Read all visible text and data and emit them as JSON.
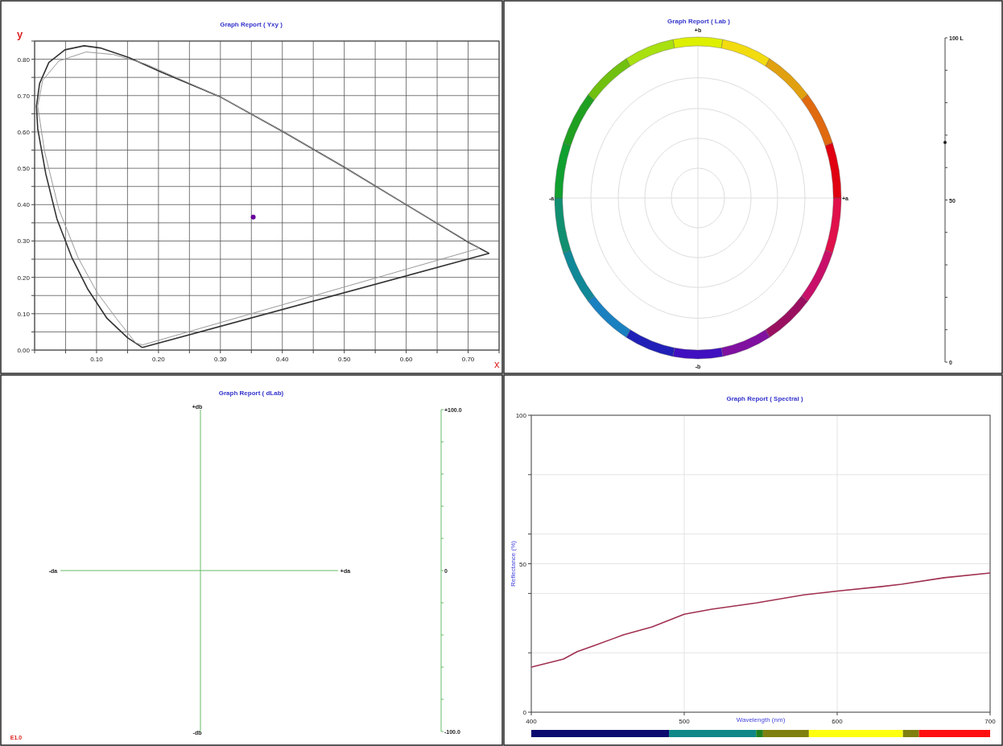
{
  "chart_data": [
    {
      "type": "line",
      "title": "Graph Report ( Yxy )",
      "xlabel": "x",
      "ylabel": "y",
      "xlim": [
        0,
        0.75
      ],
      "ylim": [
        0,
        0.85
      ],
      "grid": true,
      "xticks": [
        {
          "value": 0,
          "label": null
        },
        {
          "value": 0.05,
          "label": null
        },
        {
          "value": 0.1,
          "label": "0.10"
        },
        {
          "value": 0.15,
          "label": null
        },
        {
          "value": 0.2,
          "label": "0.20"
        },
        {
          "value": 0.25,
          "label": null
        },
        {
          "value": 0.3,
          "label": "0.30"
        },
        {
          "value": 0.35,
          "label": null
        },
        {
          "value": 0.4,
          "label": "0.40"
        },
        {
          "value": 0.45,
          "label": null
        },
        {
          "value": 0.5,
          "label": "0.50"
        },
        {
          "value": 0.55,
          "label": null
        },
        {
          "value": 0.6,
          "label": "0.60"
        },
        {
          "value": 0.65,
          "label": null
        },
        {
          "value": 0.7,
          "label": "0.70"
        },
        {
          "value": 0.75,
          "label": null
        }
      ],
      "yticks": [
        {
          "value": 0,
          "label": "0.00"
        },
        {
          "value": 0.05,
          "label": null
        },
        {
          "value": 0.1,
          "label": "0.10"
        },
        {
          "value": 0.15,
          "label": null
        },
        {
          "value": 0.2,
          "label": "0.20"
        },
        {
          "value": 0.25,
          "label": null
        },
        {
          "value": 0.3,
          "label": "0.30"
        },
        {
          "value": 0.35,
          "label": null
        },
        {
          "value": 0.4,
          "label": "0.40"
        },
        {
          "value": 0.45,
          "label": null
        },
        {
          "value": 0.5,
          "label": "0.50"
        },
        {
          "value": 0.55,
          "label": null
        },
        {
          "value": 0.6,
          "label": "0.60"
        },
        {
          "value": 0.65,
          "label": null
        },
        {
          "value": 0.7,
          "label": "0.70"
        },
        {
          "value": 0.75,
          "label": null
        },
        {
          "value": 0.8,
          "label": "0.80"
        },
        {
          "value": 0.85,
          "label": null
        }
      ],
      "series": [
        {
          "type": "line",
          "color": "#333333",
          "marker": "none",
          "x": [
            0.174,
            0.15,
            0.117,
            0.086,
            0.06,
            0.036,
            0.018,
            0.005,
            0.003,
            0.008,
            0.023,
            0.049,
            0.08,
            0.106,
            0.153,
            0.205,
            0.298,
            0.402,
            0.5,
            0.599,
            0.698,
            0.734
          ],
          "values": [
            0.007,
            0.034,
            0.087,
            0.167,
            0.255,
            0.361,
            0.485,
            0.609,
            0.671,
            0.733,
            0.791,
            0.826,
            0.837,
            0.831,
            0.804,
            0.764,
            0.698,
            0.6,
            0.503,
            0.401,
            0.299,
            0.266
          ]
        },
        {
          "type": "line",
          "color": "#333333",
          "marker": "none",
          "x": [
            0.174,
            0.734
          ],
          "values": [
            0.007,
            0.266
          ]
        },
        {
          "type": "line",
          "color": "#999999",
          "marker": "none",
          "x": [
            0.174,
            0.163,
            0.132,
            0.101,
            0.07,
            0.039,
            0.016,
            0.005,
            0.013,
            0.039,
            0.083,
            0.127,
            0.179,
            0.298,
            0.402,
            0.5,
            0.599,
            0.718
          ],
          "values": [
            0.014,
            0.02,
            0.087,
            0.158,
            0.255,
            0.388,
            0.547,
            0.671,
            0.742,
            0.795,
            0.82,
            0.813,
            0.787,
            0.698,
            0.6,
            0.503,
            0.401,
            0.28
          ]
        },
        {
          "type": "line",
          "color": "#999999",
          "marker": "none",
          "x": [
            0.174,
            0.718
          ],
          "values": [
            0.014,
            0.28
          ]
        },
        {
          "type": "scatter",
          "color": "#660099",
          "marker": "circle",
          "x": [
            0.353
          ],
          "values": [
            0.366
          ]
        }
      ]
    },
    {
      "type": "other",
      "title": "Graph Report ( Lab )",
      "annotations": [
        "+b",
        "-a",
        "+a",
        "-b",
        "100 L",
        "50",
        "0"
      ]
    },
    {
      "type": "other",
      "title": "Graph Report ( dLab)",
      "annotations": [
        "+db",
        "-da",
        "+da",
        "-db",
        "E1.0",
        "+100.0",
        "0",
        "-100.0"
      ]
    },
    {
      "type": "line",
      "title": "Graph Report ( Spectral )",
      "xlabel": "Wavelength (nm)",
      "ylabel": "Reflectance (%)",
      "xlim": [
        400,
        700
      ],
      "ylim": [
        0,
        100
      ],
      "grid": true,
      "xticks": [
        400,
        500,
        600,
        700
      ],
      "yticks": [
        0,
        {
          "value": 20,
          "label": null
        },
        {
          "value": 40,
          "label": null
        },
        50,
        {
          "value": 60,
          "label": null
        },
        {
          "value": 80,
          "label": null
        },
        100
      ],
      "series": [
        {
          "color": "#a03050",
          "x": [
            400,
            421,
            430,
            440,
            460,
            479,
            500,
            518,
            547,
            578,
            600,
            629,
            642,
            670,
            700
          ],
          "values": [
            15.2,
            17.9,
            20.4,
            22.2,
            26.0,
            28.7,
            33.0,
            34.7,
            36.8,
            39.5,
            40.8,
            42.3,
            43.1,
            45.3,
            46.9
          ]
        }
      ]
    }
  ]
}
